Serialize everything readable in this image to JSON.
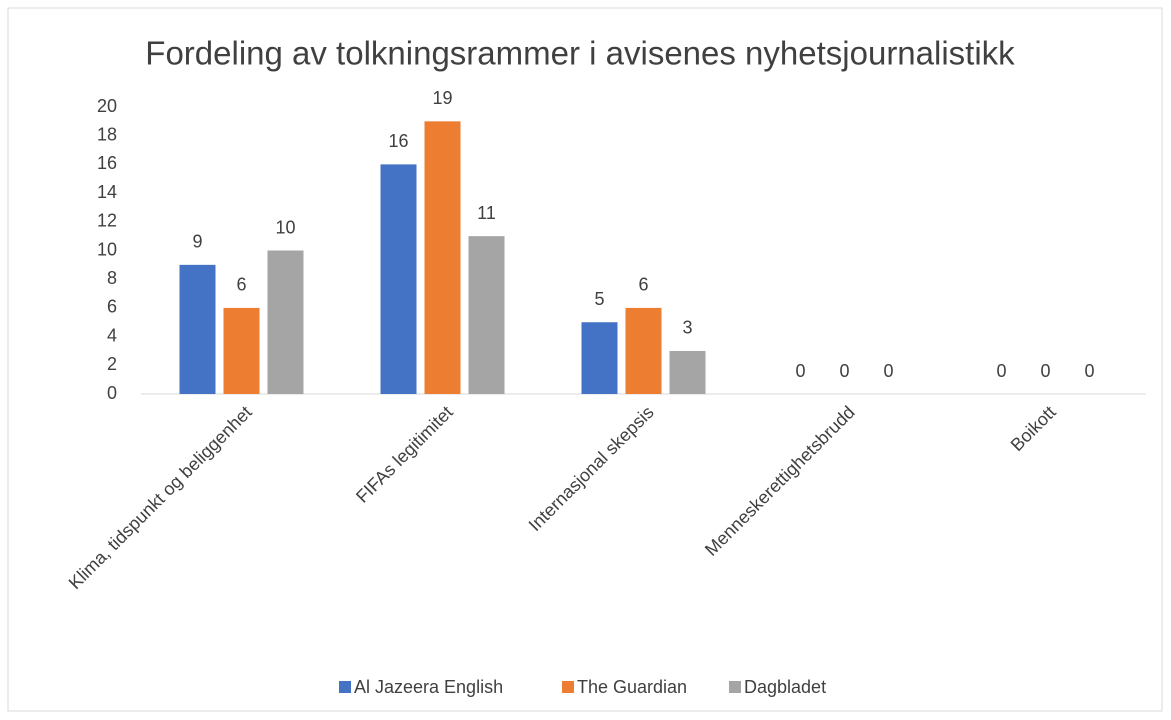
{
  "chart_data": {
    "type": "bar",
    "title": "Fordeling av tolkningsrammer i avisenes nyhetsjournalistikk",
    "categories": [
      "Klima, tidspunkt og beliggenhet",
      "FIFAs legitimitet",
      "Internasjonal skepsis",
      "Menneskerettighetsbrudd",
      "Boikott"
    ],
    "series": [
      {
        "name": "Al Jazeera English",
        "color": "#4472c4",
        "values": [
          9,
          16,
          5,
          0,
          0
        ]
      },
      {
        "name": "The Guardian",
        "color": "#ed7d31",
        "values": [
          6,
          19,
          6,
          0,
          0
        ]
      },
      {
        "name": "Dagbladet",
        "color": "#a5a5a5",
        "values": [
          10,
          11,
          3,
          0,
          0
        ]
      }
    ],
    "ylim": [
      0,
      20
    ],
    "yticks": [
      0,
      2,
      4,
      6,
      8,
      10,
      12,
      14,
      16,
      18,
      20
    ],
    "grid": false,
    "legend": "bottom"
  }
}
